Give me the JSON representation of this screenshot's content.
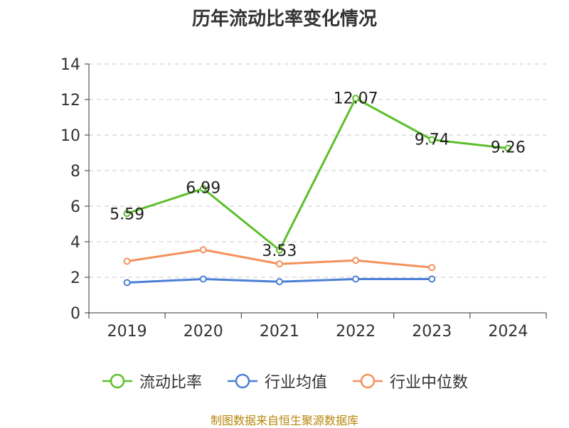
{
  "chart_data": {
    "type": "line",
    "title": "历年流动比率变化情况",
    "categories": [
      "2019",
      "2020",
      "2021",
      "2022",
      "2023",
      "2024"
    ],
    "ylim": [
      0,
      14
    ],
    "yticks": [
      0,
      2,
      4,
      6,
      8,
      10,
      12,
      14
    ],
    "grid": true,
    "legend_position": "bottom",
    "series": [
      {
        "name": "流动比率",
        "color": "#5cbf2a",
        "values": [
          5.59,
          6.99,
          3.53,
          12.07,
          9.74,
          9.26
        ],
        "labels": [
          "5.59",
          "6.99",
          "3.53",
          "12.07",
          "9.74",
          "9.26"
        ]
      },
      {
        "name": "行业均值",
        "color": "#4a7fd6",
        "values": [
          1.7,
          1.9,
          1.75,
          1.9,
          1.9,
          null
        ]
      },
      {
        "name": "行业中位数",
        "color": "#f4915b",
        "values": [
          2.9,
          3.55,
          2.75,
          2.95,
          2.55,
          null
        ]
      }
    ]
  },
  "source_text": "制图数据来自恒生聚源数据库"
}
